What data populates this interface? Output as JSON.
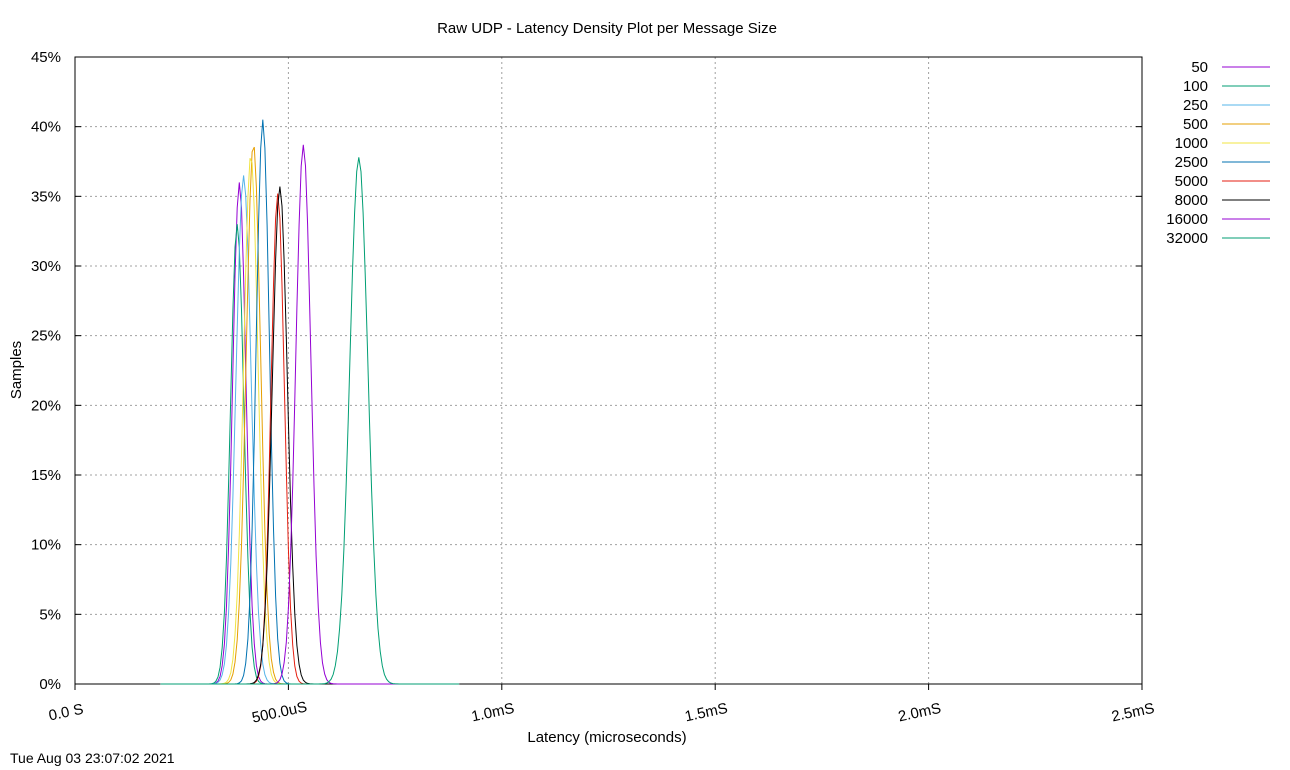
{
  "chart_data": {
    "type": "line",
    "title": "Raw UDP - Latency Density Plot per Message Size",
    "xlabel": "Latency (microseconds)",
    "ylabel": "Samples",
    "xlim_us": [
      0,
      2500
    ],
    "ylim_percent": [
      0,
      45
    ],
    "x_ticks": [
      {
        "value": 0,
        "label": "0.0 S"
      },
      {
        "value": 500,
        "label": "500.0uS"
      },
      {
        "value": 1000,
        "label": "1.0mS"
      },
      {
        "value": 1500,
        "label": "1.5mS"
      },
      {
        "value": 2000,
        "label": "2.0mS"
      },
      {
        "value": 2500,
        "label": "2.5mS"
      }
    ],
    "y_ticks": [
      {
        "value": 0,
        "label": "0%"
      },
      {
        "value": 5,
        "label": "5%"
      },
      {
        "value": 10,
        "label": "10%"
      },
      {
        "value": 15,
        "label": "15%"
      },
      {
        "value": 20,
        "label": "20%"
      },
      {
        "value": 25,
        "label": "25%"
      },
      {
        "value": 30,
        "label": "30%"
      },
      {
        "value": 35,
        "label": "35%"
      },
      {
        "value": 40,
        "label": "40%"
      },
      {
        "value": 45,
        "label": "45%"
      }
    ],
    "grid": true,
    "legend_position": "right",
    "series": [
      {
        "name": "50",
        "color": "#9400d3",
        "peak_x": 385,
        "peak_y": 36.0,
        "width": 22
      },
      {
        "name": "100",
        "color": "#009e73",
        "peak_x": 380,
        "peak_y": 33.0,
        "width": 22
      },
      {
        "name": "250",
        "color": "#56b4e9",
        "peak_x": 395,
        "peak_y": 36.5,
        "width": 25
      },
      {
        "name": "500",
        "color": "#e69f00",
        "peak_x": 418,
        "peak_y": 38.8,
        "width": 24
      },
      {
        "name": "1000",
        "color": "#f0e442",
        "peak_x": 412,
        "peak_y": 38.0,
        "width": 24
      },
      {
        "name": "2500",
        "color": "#0072b2",
        "peak_x": 440,
        "peak_y": 40.5,
        "width": 22
      },
      {
        "name": "5000",
        "color": "#e51e10",
        "peak_x": 475,
        "peak_y": 35.2,
        "width": 22
      },
      {
        "name": "8000",
        "color": "#000000",
        "peak_x": 480,
        "peak_y": 35.7,
        "width": 25
      },
      {
        "name": "16000",
        "color": "#9400d3",
        "peak_x": 535,
        "peak_y": 38.7,
        "width": 25
      },
      {
        "name": "32000",
        "color": "#009e73",
        "peak_x": 665,
        "peak_y": 37.8,
        "width": 30
      }
    ]
  },
  "footer": {
    "timestamp": "Tue Aug 03 23:07:02 2021"
  }
}
